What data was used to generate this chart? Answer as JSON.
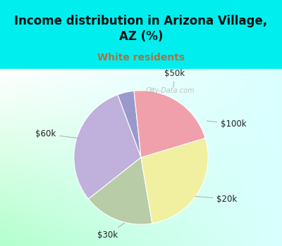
{
  "title": "Income distribution in Arizona Village,\nAZ (%)",
  "subtitle": "White residents",
  "title_color": "#111111",
  "subtitle_color": "#b07040",
  "bg_cyan": "#00eeee",
  "labels": [
    "$50k",
    "$100k",
    "$20k",
    "$30k",
    "$60k"
  ],
  "values": [
    4,
    30,
    17,
    27,
    22
  ],
  "colors": [
    "#9999cc",
    "#c0b0dc",
    "#b8cca8",
    "#f0f0a0",
    "#f0a0aa"
  ],
  "startangle": 96,
  "label_fontsize": 8.5,
  "figsize": [
    4.0,
    3.5
  ],
  "dpi": 100,
  "chart_bg_colors": [
    "#c8ecd8",
    "#ffffff",
    "#c0f0f0"
  ],
  "watermark": "City-Data.com"
}
